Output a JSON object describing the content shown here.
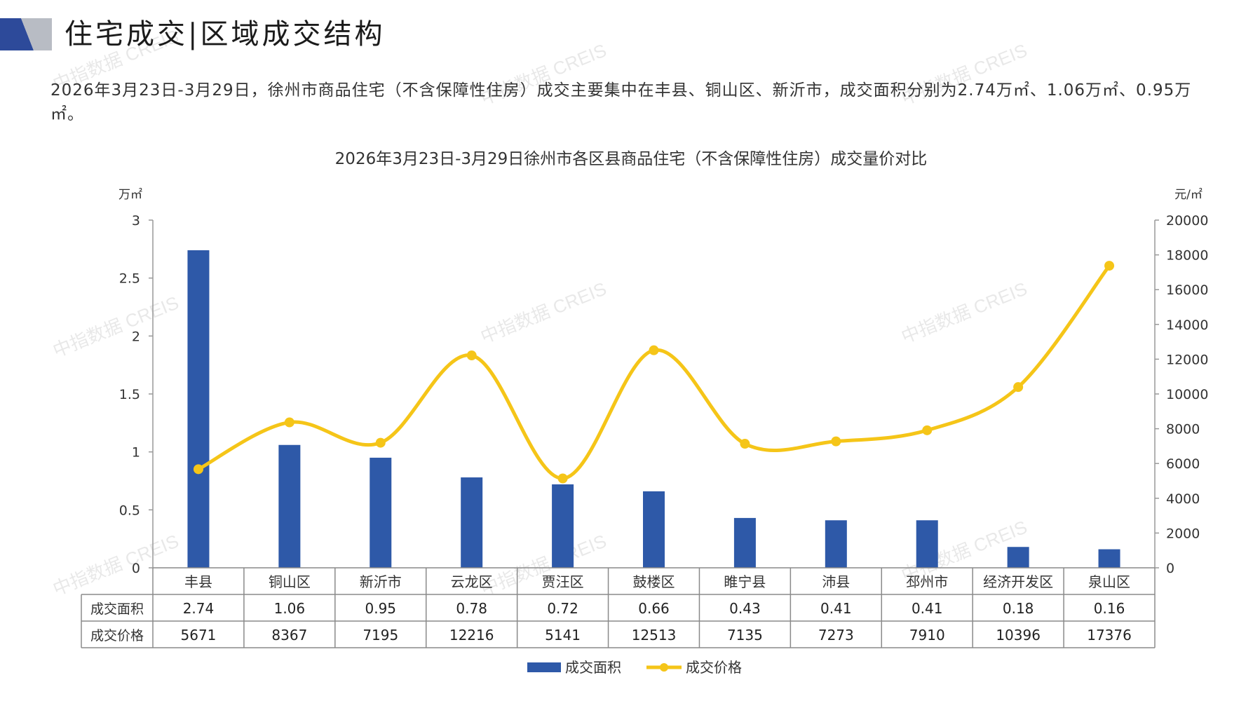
{
  "page": {
    "title": "住宅成交|区域成交结构",
    "summary": "2026年3月23日-3月29日，徐州市商品住宅（不含保障性住房）成交主要集中在丰县、铜山区、新沂市，成交面积分别为2.74万㎡、1.06万㎡、0.95万㎡。",
    "watermark": "中指数据 CREIS"
  },
  "colors": {
    "bar": "#2e59a8",
    "line": "#f5c518",
    "deco_dark": "#2d4a9a",
    "deco_gray": "#b8bcc4"
  },
  "chart_data": {
    "type": "bar+line",
    "title": "2026年3月23日-3月29日徐州市各区县商品住宅（不含保障性住房）成交量价对比",
    "y_left_unit": "万㎡",
    "y_right_unit": "元/㎡",
    "y_left_ticks": [
      "0",
      "0.5",
      "1",
      "1.5",
      "2",
      "2.5",
      "3"
    ],
    "y_right_ticks": [
      "0",
      "2000",
      "4000",
      "6000",
      "8000",
      "10000",
      "12000",
      "14000",
      "16000",
      "18000",
      "20000"
    ],
    "ylim_left": [
      0,
      3
    ],
    "ylim_right": [
      0,
      20000
    ],
    "categories": [
      "丰县",
      "铜山区",
      "新沂市",
      "云龙区",
      "贾汪区",
      "鼓楼区",
      "睢宁县",
      "沛县",
      "邳州市",
      "经济开发区",
      "泉山区"
    ],
    "series": [
      {
        "name": "成交面积",
        "type": "bar",
        "axis": "left",
        "values": [
          2.74,
          1.06,
          0.95,
          0.78,
          0.72,
          0.66,
          0.43,
          0.41,
          0.41,
          0.18,
          0.16
        ],
        "labels": [
          "2.74",
          "1.06",
          "0.95",
          "0.78",
          "0.72",
          "0.66",
          "0.43",
          "0.41",
          "0.41",
          "0.18",
          "0.16"
        ]
      },
      {
        "name": "成交价格",
        "type": "line",
        "axis": "right",
        "values": [
          5671,
          8367,
          7195,
          12216,
          5141,
          12513,
          7135,
          7273,
          7910,
          10396,
          17376
        ],
        "labels": [
          "5671",
          "8367",
          "7195",
          "12216",
          "5141",
          "12513",
          "7135",
          "7273",
          "7910",
          "10396",
          "17376"
        ]
      }
    ],
    "legend": "bottom-center",
    "grid": false
  }
}
